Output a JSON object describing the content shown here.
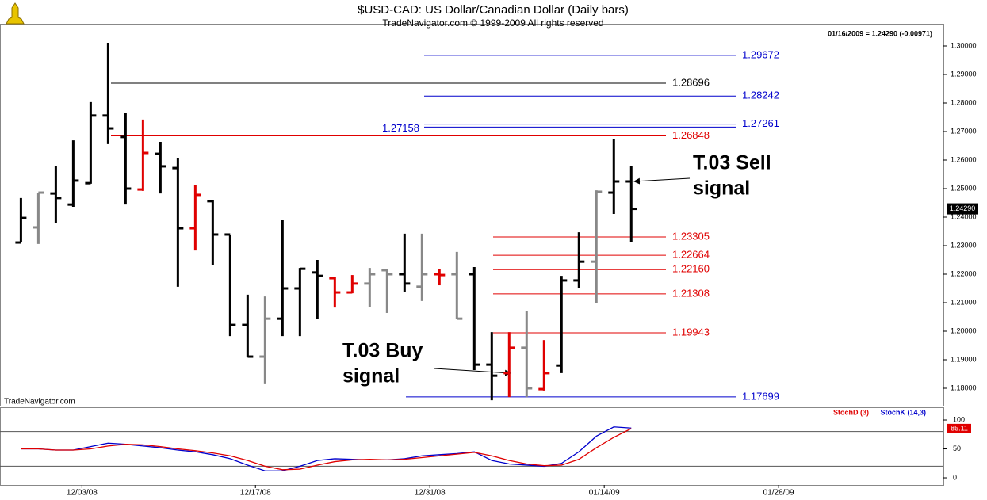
{
  "chart_data": [
    {
      "type": "ohlc",
      "title": "$USD-CAD:  US Dollar/Canadian Dollar  (Daily bars)",
      "subtitle": "TradeNavigator.com © 1999-2009 All rights reserved",
      "status": "01/16/2009 = 1.24290 (-0.00971)",
      "watermark": "TradeNavigator.com",
      "open": [
        1.2311,
        1.2364,
        1.2483,
        1.2444,
        1.2519,
        1.2756,
        1.2681,
        1.2497,
        1.2622,
        1.2572,
        1.2361,
        1.2456,
        1.2339,
        1.2022,
        1.1911,
        1.2044,
        1.215,
        1.2206,
        1.2186,
        1.2136,
        1.2167,
        1.2214,
        1.22,
        1.2156,
        1.22,
        1.22,
        1.22,
        1.1883,
        1.1853,
        1.1942,
        1.1797,
        1.188,
        1.2178,
        1.2244,
        1.2486,
        1.2525
      ],
      "high": [
        1.2467,
        1.2486,
        1.2578,
        1.2669,
        1.2803,
        1.3011,
        1.2764,
        1.2742,
        1.2664,
        1.2608,
        1.2514,
        1.2461,
        1.2339,
        1.2128,
        1.2122,
        1.2389,
        1.2222,
        1.225,
        1.2189,
        1.2197,
        1.2222,
        1.2219,
        1.2342,
        1.2342,
        1.2219,
        1.2278,
        1.2225,
        1.1997,
        1.1997,
        1.2072,
        1.1969,
        1.2194,
        1.2347,
        1.2494,
        1.2675,
        1.2578
      ],
      "low": [
        1.2311,
        1.2306,
        1.2378,
        1.2436,
        1.2517,
        1.2656,
        1.2444,
        1.2492,
        1.2483,
        1.2156,
        1.2283,
        1.2231,
        1.1983,
        1.1911,
        1.1817,
        1.1983,
        1.1983,
        1.2044,
        1.2083,
        1.2133,
        1.2086,
        1.2064,
        1.2139,
        1.2106,
        1.2161,
        1.2044,
        1.1864,
        1.1758,
        1.1769,
        1.1769,
        1.1792,
        1.1853,
        1.215,
        1.21,
        1.2411,
        1.2314
      ],
      "close": [
        1.2397,
        1.2486,
        1.2467,
        1.2528,
        1.2756,
        1.2711,
        1.25,
        1.2625,
        1.2578,
        1.2361,
        1.2478,
        1.2339,
        1.2022,
        1.1911,
        1.2044,
        1.215,
        1.2219,
        1.2194,
        1.2136,
        1.2167,
        1.22,
        1.22,
        1.2167,
        1.22,
        1.2197,
        1.2044,
        1.1883,
        1.1844,
        1.1942,
        1.18,
        1.1853,
        1.2178,
        1.2244,
        1.2489,
        1.2525,
        1.2429
      ],
      "colors": [
        "#000",
        "#888",
        "#000",
        "#000",
        "#000",
        "#000",
        "#000",
        "#e00000",
        "#000",
        "#000",
        "#e00000",
        "#000",
        "#000",
        "#000",
        "#888",
        "#000",
        "#000",
        "#000",
        "#e00000",
        "#e00000",
        "#888",
        "#888",
        "#000",
        "#888",
        "#e00000",
        "#888",
        "#000",
        "#000",
        "#e00000",
        "#888",
        "#e00000",
        "#000",
        "#000",
        "#888",
        "#000",
        "#000"
      ],
      "last_price": {
        "value": 1.2429,
        "label": "1.24290"
      },
      "levels": [
        {
          "value": 1.29672,
          "label": "1.29672",
          "color": "#0000cc"
        },
        {
          "value": 1.28696,
          "label": "1.28696",
          "color": "#000000"
        },
        {
          "value": 1.28242,
          "label": "1.28242",
          "color": "#0000cc"
        },
        {
          "value": 1.27261,
          "label": "1.27261",
          "color": "#0000cc"
        },
        {
          "value": 1.27158,
          "label": "1.27158",
          "color": "#0000cc"
        },
        {
          "value": 1.26848,
          "label": "1.26848",
          "color": "#e00000"
        },
        {
          "value": 1.23305,
          "label": "1.23305",
          "color": "#e00000"
        },
        {
          "value": 1.22664,
          "label": "1.22664",
          "color": "#e00000"
        },
        {
          "value": 1.2216,
          "label": "1.22160",
          "color": "#e00000"
        },
        {
          "value": 1.21308,
          "label": "1.21308",
          "color": "#e00000"
        },
        {
          "value": 1.19943,
          "label": "1.19943",
          "color": "#e00000"
        },
        {
          "value": 1.17699,
          "label": "1.17699",
          "color": "#0000cc"
        }
      ],
      "annotations": [
        "T.03 Sell",
        "signal",
        "T.03 Buy",
        "signal"
      ],
      "xlim": [
        -1.2,
        52.9
      ],
      "xticks": [
        {
          "value": 3.5,
          "label": "12/03/08"
        },
        {
          "value": 13.45,
          "label": "12/17/08"
        },
        {
          "value": 23.45,
          "label": "12/31/08"
        },
        {
          "value": 33.45,
          "label": "01/14/09"
        },
        {
          "value": 43.45,
          "label": "01/28/09"
        }
      ],
      "ylim": [
        1.17389,
        1.30778
      ],
      "yticks": [
        {
          "value": 1.18,
          "label": "1.18000"
        },
        {
          "value": 1.19,
          "label": "1.19000"
        },
        {
          "value": 1.2,
          "label": "1.20000"
        },
        {
          "value": 1.21,
          "label": "1.21000"
        },
        {
          "value": 1.22,
          "label": "1.22000"
        },
        {
          "value": 1.23,
          "label": "1.23000"
        },
        {
          "value": 1.24,
          "label": "1.24000"
        },
        {
          "value": 1.25,
          "label": "1.25000"
        },
        {
          "value": 1.26,
          "label": "1.26000"
        },
        {
          "value": 1.27,
          "label": "1.27000"
        },
        {
          "value": 1.28,
          "label": "1.28000"
        },
        {
          "value": 1.29,
          "label": "1.29000"
        },
        {
          "value": 1.3,
          "label": "1.30000"
        }
      ]
    },
    {
      "type": "line",
      "series": [
        {
          "name": "StochD (3)",
          "color": "#e00000",
          "values": [
            50,
            50,
            48,
            48,
            50,
            55,
            58,
            57,
            54,
            50,
            47,
            43,
            38,
            30,
            20,
            14,
            15,
            22,
            28,
            31,
            32,
            31,
            32,
            35,
            38,
            41,
            44,
            38,
            30,
            24,
            21,
            22,
            32,
            52,
            70,
            85.11
          ]
        },
        {
          "name": "StochK (14,3)",
          "color": "#0000cc",
          "values": [
            50,
            50,
            48,
            48,
            54,
            60,
            58,
            55,
            52,
            48,
            45,
            40,
            33,
            22,
            12,
            12,
            20,
            30,
            33,
            32,
            31,
            31,
            33,
            38,
            40,
            42,
            45,
            30,
            24,
            22,
            20,
            25,
            45,
            72,
            88,
            86
          ]
        }
      ],
      "last_label": {
        "value": 85.11,
        "label": "85.11"
      },
      "levels": [
        80,
        20
      ],
      "ylim": [
        -12.3,
        119.2
      ],
      "yticks": [
        0,
        50,
        100
      ]
    }
  ]
}
